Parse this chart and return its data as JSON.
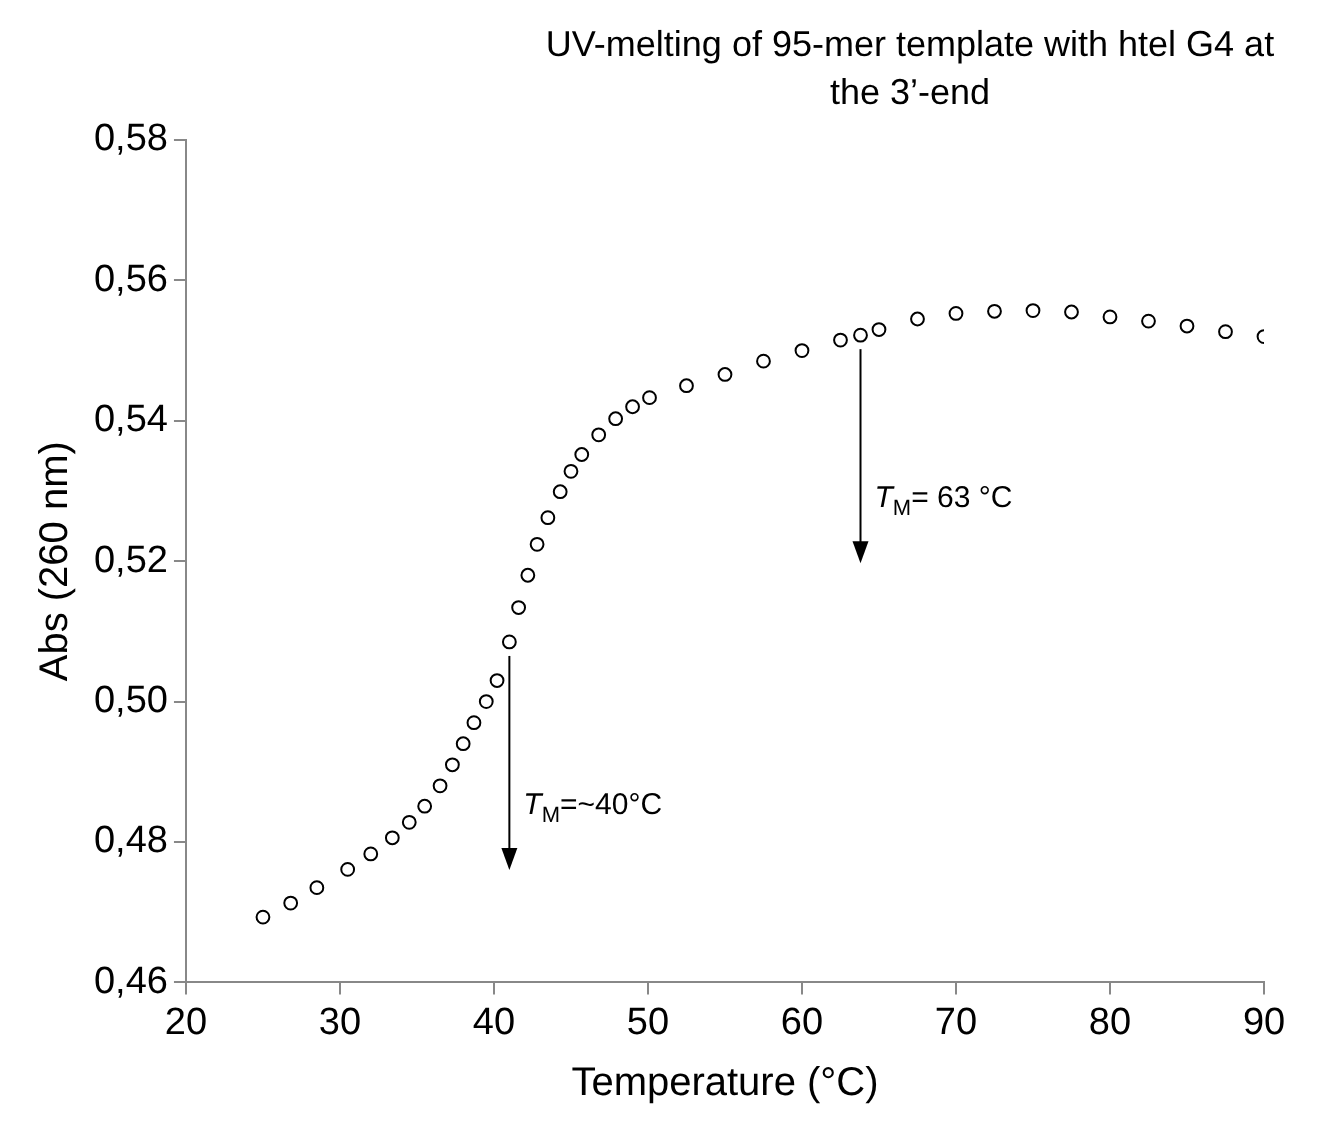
{
  "chart_data": {
    "type": "scatter",
    "title": "UV-melting of 95-mer template with htel G4 at the 3’-end",
    "xlabel": "Temperature (°C)",
    "ylabel": "Abs (260 nm)",
    "x": [
      25,
      26.8,
      28.5,
      30.5,
      32,
      33.4,
      34.5,
      35.5,
      36.5,
      37.3,
      38,
      38.7,
      39.5,
      40.2,
      41,
      41.6,
      42.2,
      42.8,
      43.5,
      44.3,
      45,
      45.7,
      46.8,
      47.9,
      49,
      50.1,
      52.5,
      55,
      57.5,
      60,
      62.5,
      63.8,
      65,
      67.5,
      70,
      72.5,
      75,
      77.5,
      80,
      82.5,
      85,
      87.5,
      90
    ],
    "series": [
      {
        "color": "#000000",
        "values": [
          0.4693,
          0.4713,
          0.4735,
          0.4761,
          0.4783,
          0.4806,
          0.4828,
          0.4851,
          0.488,
          0.491,
          0.494,
          0.497,
          0.5,
          0.503,
          0.5085,
          0.5134,
          0.518,
          0.5224,
          0.5262,
          0.5299,
          0.5328,
          0.5352,
          0.538,
          0.5403,
          0.542,
          0.5433,
          0.545,
          0.5466,
          0.5485,
          0.55,
          0.5515,
          0.5522,
          0.553,
          0.5545,
          0.5553,
          0.5556,
          0.5557,
          0.5555,
          0.5548,
          0.5542,
          0.5535,
          0.5527,
          0.552
        ]
      }
    ],
    "xlim": [
      20,
      90
    ],
    "xticks": [
      20,
      30,
      40,
      50,
      60,
      70,
      80,
      90
    ],
    "ylim": [
      0.46,
      0.58
    ],
    "yticks": [
      {
        "value": 0.46,
        "label": "0,46"
      },
      {
        "value": 0.48,
        "label": "0,48"
      },
      {
        "value": 0.5,
        "label": "0,50"
      },
      {
        "value": 0.52,
        "label": "0,52"
      },
      {
        "value": 0.54,
        "label": "0,54"
      },
      {
        "value": 0.56,
        "label": "0,56"
      },
      {
        "value": 0.58,
        "label": "0,58"
      }
    ],
    "annotations": [
      {
        "text": "T$_{M}$= 63 °C",
        "x": 63.8,
        "y": 0.5522
      },
      {
        "text": "T$_{M}$=~40°C",
        "x": 41,
        "y": 0.5085
      }
    ],
    "grid": false,
    "legend": false,
    "marker": "circle"
  }
}
